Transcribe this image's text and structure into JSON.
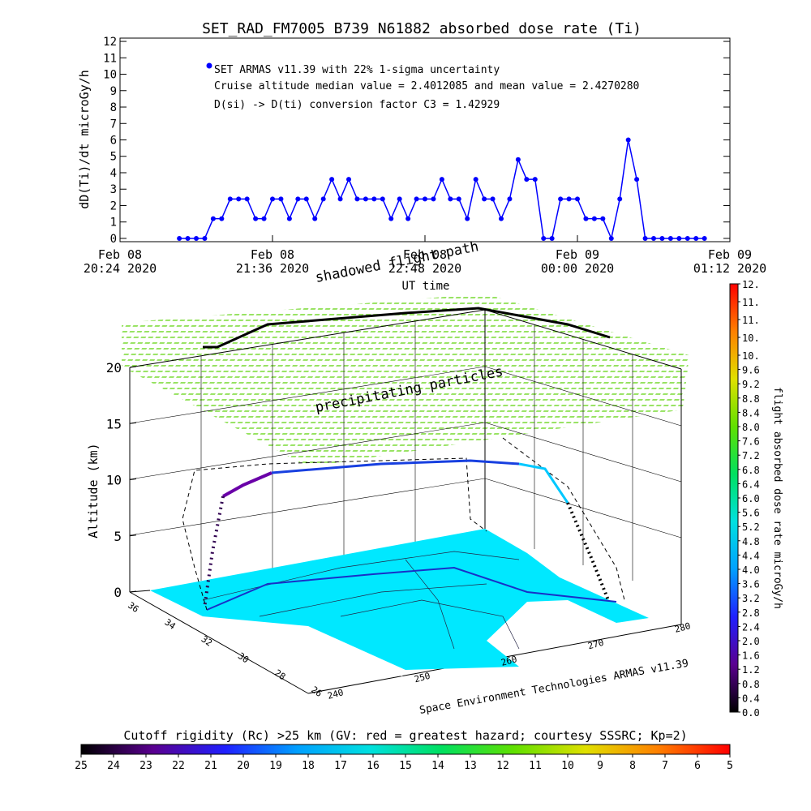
{
  "chart_data": [
    {
      "type": "line",
      "title": "SET_RAD_FM7005   B739 N61882 absorbed dose rate (Ti)",
      "x_label": "UT time",
      "y_label": "dD(Ti)/dt microGy/h",
      "annotations": [
        "Cruise altitude median value = 2.4012085 and mean value = 2.4270280",
        "D(si) -> D(ti) conversion factor C3 = 1.42929"
      ],
      "x": [
        "2020-02-08 20:52",
        "2020-02-08 20:56",
        "2020-02-08 21:00",
        "2020-02-08 21:04",
        "2020-02-08 21:08",
        "2020-02-08 21:12",
        "2020-02-08 21:16",
        "2020-02-08 21:20",
        "2020-02-08 21:24",
        "2020-02-08 21:28",
        "2020-02-08 21:32",
        "2020-02-08 21:36",
        "2020-02-08 21:40",
        "2020-02-08 21:44",
        "2020-02-08 21:48",
        "2020-02-08 21:52",
        "2020-02-08 21:56",
        "2020-02-08 22:00",
        "2020-02-08 22:04",
        "2020-02-08 22:08",
        "2020-02-08 22:12",
        "2020-02-08 22:16",
        "2020-02-08 22:20",
        "2020-02-08 22:24",
        "2020-02-08 22:28",
        "2020-02-08 22:32",
        "2020-02-08 22:36",
        "2020-02-08 22:40",
        "2020-02-08 22:44",
        "2020-02-08 22:48",
        "2020-02-08 22:52",
        "2020-02-08 22:56",
        "2020-02-08 23:00",
        "2020-02-08 23:04",
        "2020-02-08 23:08",
        "2020-02-08 23:12",
        "2020-02-08 23:16",
        "2020-02-08 23:20",
        "2020-02-08 23:24",
        "2020-02-08 23:28",
        "2020-02-08 23:32",
        "2020-02-08 23:36",
        "2020-02-08 23:40",
        "2020-02-08 23:44",
        "2020-02-08 23:48",
        "2020-02-08 23:52",
        "2020-02-08 23:56",
        "2020-02-09 00:00",
        "2020-02-09 00:04",
        "2020-02-09 00:08",
        "2020-02-09 00:12",
        "2020-02-09 00:16",
        "2020-02-09 00:20",
        "2020-02-09 00:24",
        "2020-02-09 00:28",
        "2020-02-09 00:32",
        "2020-02-09 00:36",
        "2020-02-09 00:40",
        "2020-02-09 00:44",
        "2020-02-09 00:48",
        "2020-02-09 00:52",
        "2020-02-09 00:56",
        "2020-02-09 01:00"
      ],
      "series": [
        {
          "name": "SET ARMAS v11.39 with 22% 1-sigma uncertainty",
          "color": "#0000ff",
          "values": [
            0,
            0,
            0,
            0,
            1.2,
            1.2,
            2.4,
            2.4,
            2.4,
            1.2,
            1.2,
            2.4,
            2.4,
            1.2,
            2.4,
            2.4,
            1.2,
            2.4,
            3.6,
            2.4,
            3.6,
            2.4,
            2.4,
            2.4,
            2.4,
            1.2,
            2.4,
            1.2,
            2.4,
            2.4,
            2.4,
            3.6,
            2.4,
            2.4,
            1.2,
            3.6,
            2.4,
            2.4,
            1.2,
            2.4,
            4.8,
            3.6,
            3.6,
            0,
            0,
            2.4,
            2.4,
            2.4,
            1.2,
            1.2,
            1.2,
            0,
            2.4,
            6,
            3.6,
            0,
            0,
            0,
            0,
            0,
            0,
            0,
            0
          ]
        }
      ],
      "xlim": [
        "2020-02-08 20:24",
        "2020-02-09 01:12"
      ],
      "xticks": [
        {
          "value": "2020-02-08 20:24",
          "label": "Feb 08\n20:24 2020"
        },
        {
          "value": "2020-02-08 21:36",
          "label": "Feb 08\n21:36 2020"
        },
        {
          "value": "2020-02-08 22:48",
          "label": "Feb 08\n22:48 2020"
        },
        {
          "value": "2020-02-09 00:00",
          "label": "Feb 09\n00:00 2020"
        },
        {
          "value": "2020-02-09 01:12",
          "label": "Feb 09\n01:12 2020"
        }
      ],
      "ylim": [
        -0.2,
        12.2
      ],
      "yticks": [
        0,
        1,
        2,
        3,
        4,
        5,
        6,
        7,
        8,
        9,
        10,
        11,
        12
      ]
    },
    {
      "type": "surface3d",
      "title": "shadowed flight path",
      "annotations": [
        "precipitating particles",
        "Space Environment Technologies ARMAS v11.39"
      ],
      "z_label": "Altitude (km)",
      "zlim": [
        0,
        20
      ],
      "zticks": [
        0,
        5,
        10,
        15,
        20
      ],
      "ylim": [
        36,
        26
      ],
      "yticks": [
        36,
        34,
        32,
        30,
        28,
        26
      ],
      "xlim": [
        240,
        280
      ],
      "xticks": [
        240,
        250,
        260,
        270,
        280
      ]
    },
    {
      "type": "colorbar",
      "orientation": "vertical",
      "label": "flight absorbed dose rate microGy/h",
      "lim": [
        0,
        12
      ],
      "ticks": [
        {
          "value": 0,
          "label": "0.0"
        },
        0.4,
        0.8,
        1.2,
        1.6,
        {
          "value": 2,
          "label": "2.0"
        },
        2.4,
        2.8,
        3.2,
        3.6,
        {
          "value": 4,
          "label": "4.0"
        },
        4.4,
        4.8,
        5.2,
        5.6,
        {
          "value": 6,
          "label": "6.0"
        },
        6.4,
        6.8,
        7.2,
        7.6,
        {
          "value": 8,
          "label": "8.0"
        },
        8.4,
        8.8,
        9.2,
        9.6,
        {
          "value": 10,
          "label": "10."
        },
        {
          "value": 10.5,
          "label": "10."
        },
        {
          "value": 11,
          "label": "11."
        },
        {
          "value": 11.5,
          "label": "11."
        },
        {
          "value": 12,
          "label": "12."
        }
      ],
      "colors": [
        "#000000",
        "#5a0090",
        "#2020ff",
        "#00a0ff",
        "#00e0e0",
        "#00e060",
        "#60e000",
        "#e0e000",
        "#ff8000",
        "#ff0000"
      ]
    },
    {
      "type": "colorbar",
      "orientation": "horizontal",
      "label": "Cutoff rigidity (Rc) >25 km (GV: red = greatest hazard; courtesy SSSRC; Kp=2)",
      "lim": [
        25,
        5
      ],
      "ticks": [
        25,
        24,
        23,
        22,
        21,
        20,
        19,
        18,
        17,
        16,
        15,
        14,
        13,
        12,
        11,
        10,
        9,
        8,
        7,
        6,
        5
      ],
      "colors": [
        "#000000",
        "#5a0090",
        "#2020ff",
        "#00a0ff",
        "#00e0e0",
        "#00e060",
        "#60e000",
        "#e0e000",
        "#ff8000",
        "#ff0000"
      ]
    }
  ]
}
